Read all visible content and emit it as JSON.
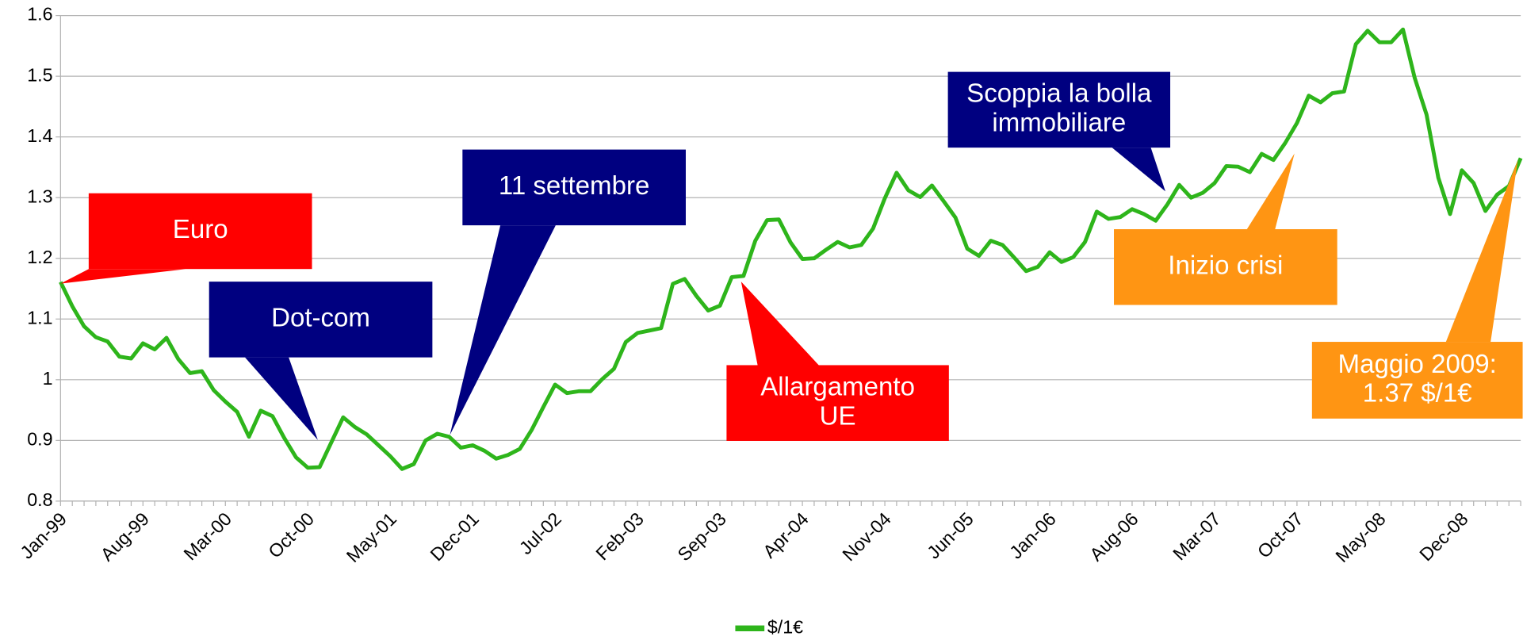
{
  "chart_data": {
    "type": "line",
    "categories": [
      "Jan-99",
      null,
      null,
      null,
      null,
      null,
      null,
      "Aug-99",
      null,
      null,
      null,
      null,
      null,
      null,
      "Mar-00",
      null,
      null,
      null,
      null,
      null,
      null,
      "Oct-00",
      null,
      null,
      null,
      null,
      null,
      null,
      "May-01",
      null,
      null,
      null,
      null,
      null,
      null,
      "Dec-01",
      null,
      null,
      null,
      null,
      null,
      null,
      "Jul-02",
      null,
      null,
      null,
      null,
      null,
      null,
      "Feb-03",
      null,
      null,
      null,
      null,
      null,
      null,
      "Sep-03",
      null,
      null,
      null,
      null,
      null,
      null,
      "Apr-04",
      null,
      null,
      null,
      null,
      null,
      null,
      "Nov-04",
      null,
      null,
      null,
      null,
      null,
      null,
      "Jun-05",
      null,
      null,
      null,
      null,
      null,
      null,
      "Jan-06",
      null,
      null,
      null,
      null,
      null,
      null,
      "Aug-06",
      null,
      null,
      null,
      null,
      null,
      null,
      "Mar-07",
      null,
      null,
      null,
      null,
      null,
      null,
      "Oct-07",
      null,
      null,
      null,
      null,
      null,
      null,
      "May-08",
      null,
      null,
      null,
      null,
      null,
      null,
      "Dec-08",
      null,
      null,
      null,
      null,
      null
    ],
    "series": [
      {
        "name": "$/1€",
        "color": "#2eb51b",
        "values": [
          1.161,
          1.121,
          1.088,
          1.07,
          1.063,
          1.038,
          1.035,
          1.06,
          1.05,
          1.069,
          1.034,
          1.011,
          1.014,
          0.983,
          0.964,
          0.947,
          0.906,
          0.949,
          0.94,
          0.904,
          0.872,
          0.855,
          0.856,
          0.897,
          0.938,
          0.922,
          0.91,
          0.892,
          0.874,
          0.853,
          0.861,
          0.9,
          0.911,
          0.906,
          0.888,
          0.892,
          0.883,
          0.87,
          0.876,
          0.886,
          0.917,
          0.955,
          0.992,
          0.978,
          0.981,
          0.981,
          1.001,
          1.018,
          1.062,
          1.077,
          1.081,
          1.085,
          1.158,
          1.166,
          1.138,
          1.114,
          1.122,
          1.169,
          1.171,
          1.229,
          1.263,
          1.264,
          1.226,
          1.199,
          1.2,
          1.214,
          1.227,
          1.218,
          1.222,
          1.249,
          1.299,
          1.341,
          1.312,
          1.301,
          1.32,
          1.294,
          1.267,
          1.216,
          1.204,
          1.229,
          1.222,
          1.201,
          1.179,
          1.186,
          1.21,
          1.194,
          1.202,
          1.227,
          1.277,
          1.265,
          1.268,
          1.281,
          1.273,
          1.262,
          1.289,
          1.321,
          1.3,
          1.308,
          1.324,
          1.352,
          1.351,
          1.342,
          1.372,
          1.362,
          1.39,
          1.423,
          1.468,
          1.457,
          1.472,
          1.475,
          1.553,
          1.575,
          1.556,
          1.556,
          1.577,
          1.497,
          1.437,
          1.333,
          1.273,
          1.345,
          1.324,
          1.278,
          1.305,
          1.319,
          1.365
        ]
      }
    ],
    "ylim": [
      0.8,
      1.6
    ],
    "yticks": [
      0.8,
      0.9,
      1,
      1.1,
      1.2,
      1.3,
      1.4,
      1.5,
      1.6
    ],
    "grid": true,
    "legend": "bottom",
    "annotations": [
      {
        "lines": [
          "Euro"
        ],
        "color": "#ff0000"
      },
      {
        "lines": [
          "Dot-com"
        ],
        "color": "#000080"
      },
      {
        "lines": [
          "11 settembre"
        ],
        "color": "#000080"
      },
      {
        "lines": [
          "Allargamento",
          "UE"
        ],
        "color": "#ff0000"
      },
      {
        "lines": [
          "Scoppia la bolla",
          "immobiliare"
        ],
        "color": "#000080"
      },
      {
        "lines": [
          "Inizio crisi"
        ],
        "color": "#ff9513"
      },
      {
        "lines": [
          "Maggio 2009:",
          "1.37 $/1€"
        ],
        "color": "#ff9513"
      }
    ]
  }
}
